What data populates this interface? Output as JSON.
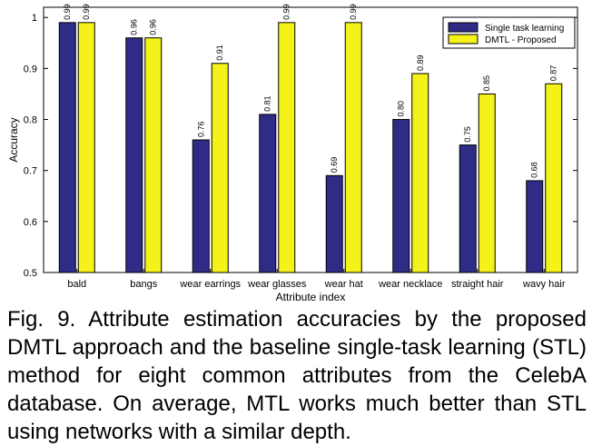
{
  "chart_data": {
    "type": "bar",
    "categories": [
      "bald",
      "bangs",
      "wear earrings",
      "wear glasses",
      "wear hat",
      "wear necklace",
      "straight hair",
      "wavy hair"
    ],
    "series": [
      {
        "name": "Single task learning",
        "values": [
          0.99,
          0.96,
          0.76,
          0.81,
          0.69,
          0.8,
          0.75,
          0.68
        ],
        "labels": [
          "0.99",
          "0.96",
          "0.76",
          "0.81",
          "0.69",
          "0.80",
          "0.75",
          "0.68"
        ],
        "color": "#2e2c86"
      },
      {
        "name": "DMTL - Proposed",
        "values": [
          0.99,
          0.96,
          0.91,
          0.99,
          0.99,
          0.89,
          0.85,
          0.87
        ],
        "labels": [
          "0.99",
          "0.96",
          "0.91",
          "0.99",
          "0.99",
          "0.89",
          "0.85",
          "0.87"
        ],
        "color": "#f4f218"
      }
    ],
    "xlabel": "Attribute index",
    "ylabel": "Accuracy",
    "ylim": [
      0.5,
      1.02
    ],
    "yticks": [
      "0.5",
      "0.6",
      "0.7",
      "0.8",
      "0.9",
      "1"
    ],
    "grid": false,
    "legend_position": "top-right"
  },
  "caption": "Fig. 9.  Attribute estimation accuracies by the proposed DMTL approach and the baseline single-task learning (STL) method for eight common attributes from the CelebA database. On average, MTL works much better than STL using networks with a similar depth."
}
